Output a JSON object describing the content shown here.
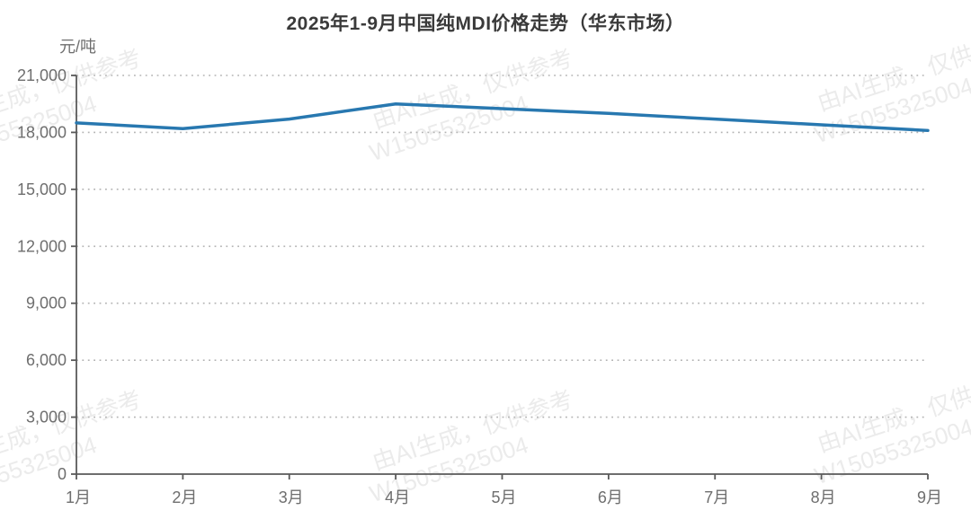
{
  "title": "2025年1-9月中国纯MDI价格走势（华东市场）",
  "y_axis_unit": "元/吨",
  "watermark": {
    "line1": "由AI生成，仅供参考",
    "line2": "W15055325004"
  },
  "colors": {
    "line": "#2878b0",
    "axis": "#595959",
    "grid": "#b3b3b3",
    "tick_label": "#6e6e6e",
    "title_text": "#3a3a3a"
  },
  "chart_data": {
    "type": "line",
    "title": "2025年1-9月中国纯MDI价格走势（华东市场）",
    "xlabel": "",
    "ylabel": "元/吨",
    "categories": [
      "1月",
      "2月",
      "3月",
      "4月",
      "5月",
      "6月",
      "7月",
      "8月",
      "9月"
    ],
    "values": [
      18500,
      18200,
      18700,
      19500,
      19250,
      19000,
      18700,
      18400,
      18100
    ],
    "ylim": [
      0,
      21000
    ],
    "ytick_interval": 3000,
    "ytick_labels": [
      "0",
      "3,000",
      "6,000",
      "9,000",
      "12,000",
      "15,000",
      "18,000",
      "21,000"
    ],
    "grid": "horizontal-dotted",
    "legend_position": "none"
  }
}
